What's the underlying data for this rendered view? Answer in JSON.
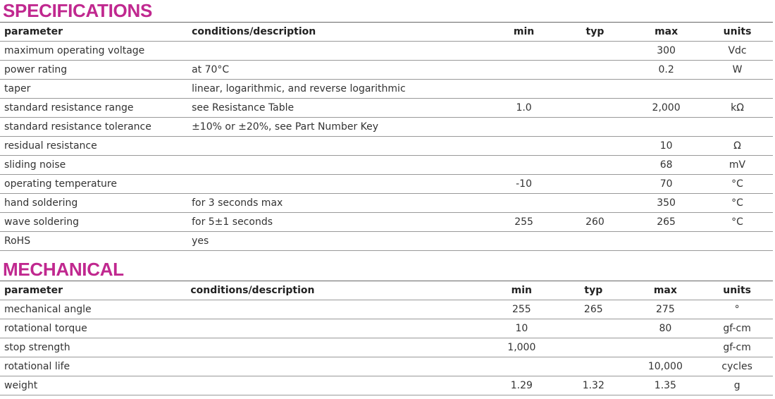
{
  "specifications": {
    "title": "SPECIFICATIONS",
    "headers": [
      "parameter",
      "conditions/description",
      "min",
      "typ",
      "max",
      "units"
    ],
    "rows": [
      [
        "maximum operating voltage",
        "",
        "",
        "",
        "300",
        "Vdc"
      ],
      [
        "power rating",
        "at 70°C",
        "",
        "",
        "0.2",
        "W"
      ],
      [
        "taper",
        "linear, logarithmic, and reverse logarithmic",
        "",
        "",
        "",
        ""
      ],
      [
        "standard resistance range",
        "see Resistance Table",
        "1.0",
        "",
        "2,000",
        "kΩ"
      ],
      [
        "standard resistance tolerance",
        "±10% or ±20%, see Part Number Key",
        "",
        "",
        "",
        ""
      ],
      [
        "residual resistance",
        "",
        "",
        "",
        "10",
        "Ω"
      ],
      [
        "sliding noise",
        "",
        "",
        "",
        "68",
        "mV"
      ],
      [
        "operating temperature",
        "",
        "-10",
        "",
        "70",
        "°C"
      ],
      [
        "hand soldering",
        "for 3 seconds max",
        "",
        "",
        "350",
        "°C"
      ],
      [
        "wave soldering",
        "for 5±1 seconds",
        "255",
        "260",
        "265",
        "°C"
      ],
      [
        "RoHS",
        "yes",
        "",
        "",
        "",
        ""
      ]
    ]
  },
  "mechanical": {
    "title": "MECHANICAL",
    "headers": [
      "parameter",
      "conditions/description",
      "min",
      "typ",
      "max",
      "units"
    ],
    "rows": [
      [
        "mechanical angle",
        "",
        "255",
        "265",
        "275",
        "°"
      ],
      [
        "rotational torque",
        "",
        "10",
        "",
        "80",
        "gf-cm"
      ],
      [
        "stop strength",
        "",
        "1,000",
        "",
        "",
        "gf-cm"
      ],
      [
        "rotational life",
        "",
        "",
        "",
        "10,000",
        "cycles"
      ],
      [
        "weight",
        "",
        "1.29",
        "1.32",
        "1.35",
        "g"
      ]
    ]
  },
  "colors": {
    "heading": "#c0288f"
  }
}
